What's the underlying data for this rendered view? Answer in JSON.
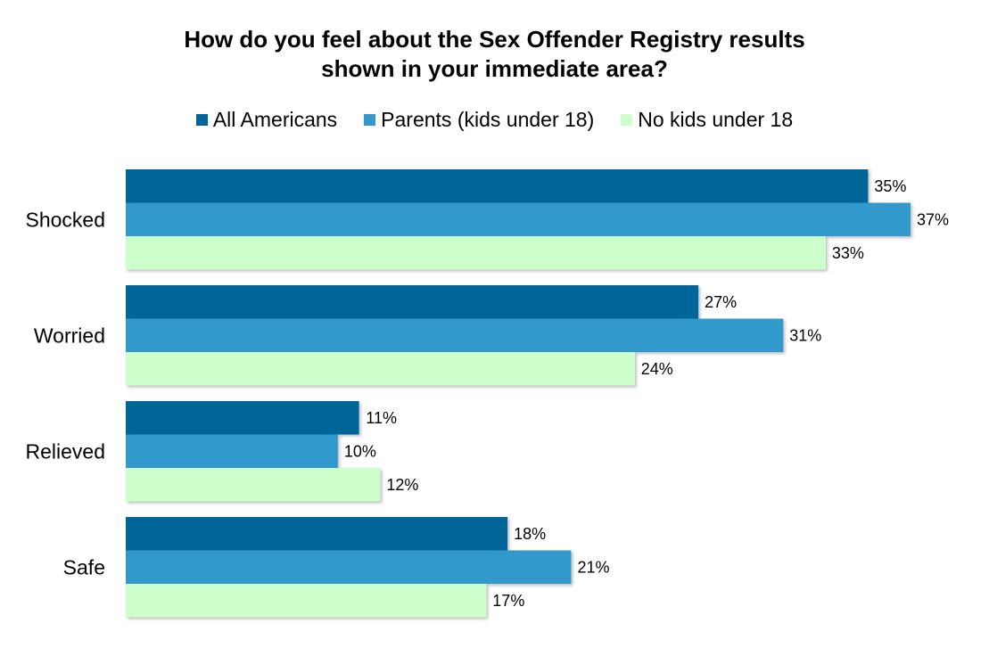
{
  "chart_data": {
    "type": "bar",
    "orientation": "horizontal",
    "title_lines": [
      "How do you feel about the Sex Offender Registry results",
      "shown in your immediate area?"
    ],
    "categories": [
      "Shocked",
      "Worried",
      "Relieved",
      "Safe"
    ],
    "series": [
      {
        "name": "All Americans",
        "color": "#00669A",
        "values": [
          35,
          27,
          11,
          18
        ]
      },
      {
        "name": "Parents (kids under 18)",
        "color": "#3399CC",
        "values": [
          37,
          31,
          10,
          21
        ]
      },
      {
        "name": "No kids under 18",
        "color": "#CCFFCC",
        "values": [
          33,
          24,
          12,
          17
        ]
      }
    ],
    "value_suffix": "%",
    "xlim": [
      0,
      37
    ],
    "grid": false,
    "legend_position": "top"
  }
}
